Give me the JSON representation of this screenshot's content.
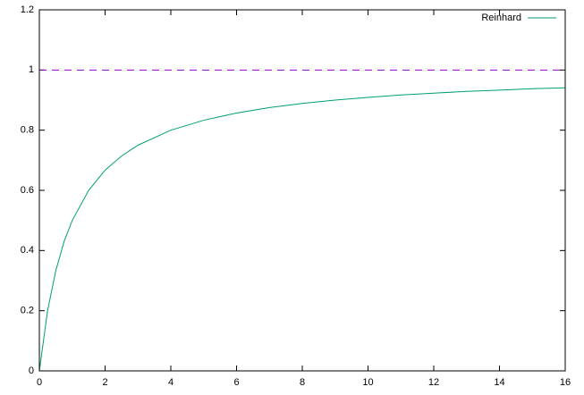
{
  "chart_data": {
    "type": "line",
    "x": [
      0,
      0.25,
      0.5,
      0.75,
      1,
      1.5,
      2,
      2.5,
      3,
      4,
      5,
      6,
      7,
      8,
      9,
      10,
      11,
      12,
      13,
      14,
      15,
      16
    ],
    "series": [
      {
        "name": "Reinhard",
        "color": "#009e73",
        "values": [
          0,
          0.2,
          0.333,
          0.429,
          0.5,
          0.6,
          0.667,
          0.714,
          0.75,
          0.8,
          0.833,
          0.857,
          0.875,
          0.889,
          0.9,
          0.909,
          0.917,
          0.923,
          0.929,
          0.933,
          0.938,
          0.941
        ]
      }
    ],
    "reference_line": {
      "y": 1,
      "color": "#9400d3",
      "dashed": true
    },
    "xlim": [
      0,
      16
    ],
    "xticks": [
      0,
      2,
      4,
      6,
      8,
      10,
      12,
      14,
      16
    ],
    "ylim": [
      0,
      1.2
    ],
    "yticks": [
      0,
      0.2,
      0.4,
      0.6,
      0.8,
      1,
      1.2
    ],
    "grid": false,
    "legend": "top-right"
  }
}
